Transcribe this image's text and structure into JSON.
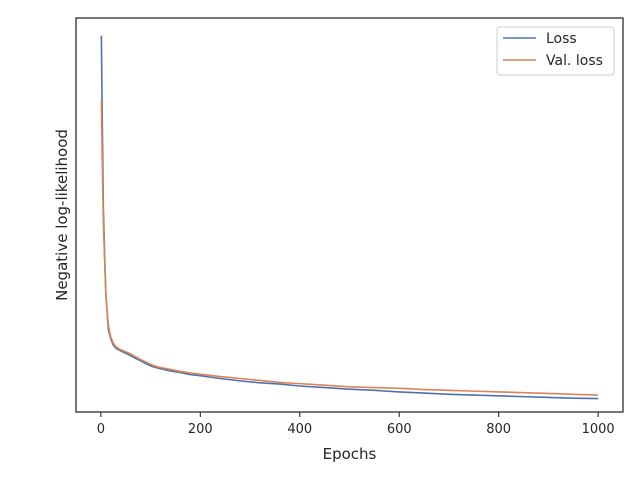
{
  "chart_data": {
    "type": "line",
    "title": "",
    "xlabel": "Epochs",
    "ylabel": "Negative log-likelihood",
    "xlim": [
      -50,
      1050
    ],
    "x_ticks": [
      0,
      200,
      400,
      600,
      800,
      1000
    ],
    "x_tick_labels": [
      "0",
      "200",
      "400",
      "600",
      "800",
      "1000"
    ],
    "ylim": [
      0.0,
      1.0
    ],
    "y_ticks_shown": false,
    "grid": false,
    "legend": {
      "position": "upper right",
      "entries": [
        "Loss",
        "Val. loss"
      ]
    },
    "series": [
      {
        "name": "Loss",
        "color": "#4c72b0",
        "x": [
          1,
          3,
          5,
          8,
          10,
          15,
          20,
          25,
          30,
          40,
          50,
          60,
          70,
          80,
          90,
          100,
          110,
          120,
          140,
          160,
          180,
          200,
          240,
          280,
          320,
          360,
          400,
          450,
          500,
          550,
          600,
          650,
          700,
          750,
          800,
          850,
          900,
          950,
          1000
        ],
        "y": [
          0.955,
          0.72,
          0.52,
          0.38,
          0.3,
          0.21,
          0.185,
          0.17,
          0.162,
          0.155,
          0.149,
          0.143,
          0.136,
          0.13,
          0.123,
          0.117,
          0.113,
          0.11,
          0.104,
          0.1,
          0.095,
          0.092,
          0.085,
          0.079,
          0.074,
          0.071,
          0.066,
          0.062,
          0.058,
          0.055,
          0.051,
          0.048,
          0.045,
          0.043,
          0.041,
          0.039,
          0.037,
          0.035,
          0.034
        ]
      },
      {
        "name": "Val. loss",
        "color": "#dd8452",
        "x": [
          1,
          3,
          5,
          8,
          10,
          15,
          20,
          25,
          30,
          40,
          50,
          60,
          70,
          80,
          90,
          100,
          110,
          120,
          140,
          160,
          180,
          200,
          240,
          280,
          320,
          360,
          400,
          450,
          500,
          550,
          600,
          650,
          700,
          750,
          800,
          850,
          900,
          950,
          1000
        ],
        "y": [
          0.79,
          0.62,
          0.48,
          0.37,
          0.3,
          0.22,
          0.19,
          0.175,
          0.166,
          0.158,
          0.153,
          0.147,
          0.14,
          0.133,
          0.127,
          0.121,
          0.116,
          0.113,
          0.108,
          0.103,
          0.099,
          0.096,
          0.09,
          0.085,
          0.08,
          0.075,
          0.072,
          0.068,
          0.064,
          0.062,
          0.06,
          0.057,
          0.055,
          0.053,
          0.051,
          0.049,
          0.047,
          0.045,
          0.043
        ]
      }
    ]
  }
}
